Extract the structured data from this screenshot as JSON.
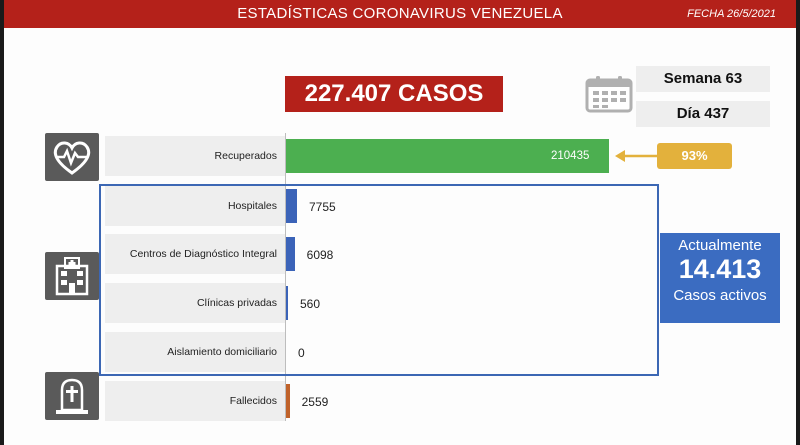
{
  "header": {
    "title": "ESTADÍSTICAS CORONAVIRUS VENEZUELA",
    "date": "FECHA 26/5/2021"
  },
  "summary": {
    "total_cases": "227.407 CASOS",
    "week": "Semana 63",
    "day": "Día 437"
  },
  "recovered_percent_label": "93%",
  "active": {
    "label": "Actualmente",
    "value": "14.413",
    "sublabel": "Casos activos"
  },
  "icons": {
    "calendar": "calendar-icon",
    "recovered": "heart-pulse-icon",
    "hospital": "hospital-icon",
    "deceased": "tombstone-icon"
  },
  "colors": {
    "header_red": "#b4211a",
    "recovered_green": "#4caf50",
    "hospital_blue": "#3b63b8",
    "deceased_orange": "#c0622a",
    "active_blue": "#3b6cc1",
    "percent_gold": "#e3b13c"
  },
  "chart_data": {
    "type": "bar",
    "orientation": "horizontal",
    "categories": [
      "Recuperados",
      "Hospitales",
      "Centros de Diagnóstico Integral",
      "Clínicas privadas",
      "Aislamiento domiciliario",
      "Fallecidos"
    ],
    "values": [
      210435,
      7755,
      6098,
      560,
      0,
      2559
    ],
    "value_labels": [
      "210435",
      "7755",
      "6098",
      "560",
      "0",
      "2559"
    ],
    "bar_colors": [
      "#4caf50",
      "#3b63b8",
      "#3b63b8",
      "#3b63b8",
      "#3b63b8",
      "#c0622a"
    ]
  }
}
